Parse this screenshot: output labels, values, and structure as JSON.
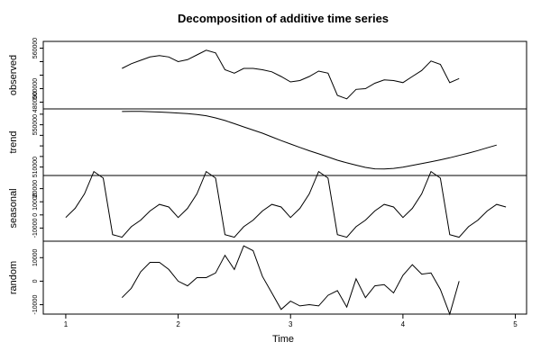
{
  "chart_data": {
    "type": "line",
    "title": "Decomposition of additive time series",
    "xlabel": "Time",
    "x_ticks": [
      1,
      2,
      3,
      4,
      5
    ],
    "xlim": [
      0.8,
      5.1
    ],
    "frequency": 12,
    "start": 1,
    "panels": [
      {
        "name": "observed",
        "ylabel": "observed",
        "ylim": [
          470000,
          570000
        ],
        "y_ticks": [
          480000,
          500000,
          520000,
          540000,
          560000
        ],
        "tick_labels": [
          "480000",
          "500000",
          "",
          "",
          "560000"
        ],
        "x_start": 1.5,
        "values": [
          530000,
          537000,
          542000,
          547000,
          549000,
          547000,
          540000,
          543000,
          550000,
          557000,
          553000,
          528000,
          523000,
          530000,
          530000,
          528000,
          525000,
          518000,
          510000,
          512000,
          518000,
          526000,
          523000,
          490000,
          485000,
          499000,
          500000,
          508000,
          513000,
          512000,
          509000,
          518000,
          527000,
          541000,
          536000,
          509000,
          515000
        ]
      },
      {
        "name": "trend",
        "ylabel": "trend",
        "ylim": [
          502000,
          565000
        ],
        "y_ticks": [
          510000,
          520000,
          530000,
          540000,
          550000,
          560000
        ],
        "tick_labels": [
          "510000",
          "",
          "",
          "",
          "550000",
          ""
        ],
        "x_start": 1.5,
        "values": [
          562500,
          562600,
          562600,
          562400,
          562000,
          561600,
          561100,
          560500,
          559700,
          558500,
          556500,
          554000,
          551000,
          548000,
          545000,
          542000,
          538500,
          535000,
          531800,
          528600,
          525400,
          522500,
          519500,
          516500,
          514000,
          511800,
          509700,
          508300,
          508200,
          508700,
          509800,
          511500,
          513300,
          515000,
          516800,
          518800,
          521000,
          523200,
          525600,
          528200,
          530800
        ]
      },
      {
        "name": "seasonal",
        "ylabel": "seasonal",
        "ylim": [
          -20000,
          30000
        ],
        "y_ticks": [
          -10000,
          0,
          10000,
          20000
        ],
        "tick_labels": [
          "-10000",
          "0",
          "10000",
          "20000"
        ],
        "x_start": 1.0,
        "values": [
          -2000,
          5000,
          16000,
          33000,
          28000,
          -15000,
          -17000,
          -9000,
          -4000,
          3000,
          8000,
          6000,
          -2000,
          5000,
          16000,
          33000,
          28000,
          -15000,
          -17000,
          -9000,
          -4000,
          3000,
          8000,
          6000,
          -2000,
          5000,
          16000,
          33000,
          28000,
          -15000,
          -17000,
          -9000,
          -4000,
          3000,
          8000,
          6000,
          -2000,
          5000,
          16000,
          33000,
          28000,
          -15000,
          -17000,
          -9000,
          -4000,
          3000,
          8000,
          6000
        ]
      },
      {
        "name": "random",
        "ylabel": "random",
        "ylim": [
          -14000,
          17000
        ],
        "y_ticks": [
          -10000,
          0,
          10000
        ],
        "tick_labels": [
          "-10000",
          "0",
          "10000"
        ],
        "x_start": 1.5,
        "values": [
          -7000,
          -3000,
          4000,
          8000,
          8000,
          5000,
          0,
          -2000,
          1500,
          1500,
          3500,
          11000,
          5000,
          15000,
          13000,
          2000,
          -5000,
          -12000,
          -8500,
          -10500,
          -10000,
          -10500,
          -6000,
          -4000,
          -11000,
          1000,
          -7000,
          -2000,
          -1500,
          -5000,
          2500,
          7000,
          3000,
          3500,
          -3500,
          -14000,
          0
        ]
      }
    ]
  }
}
